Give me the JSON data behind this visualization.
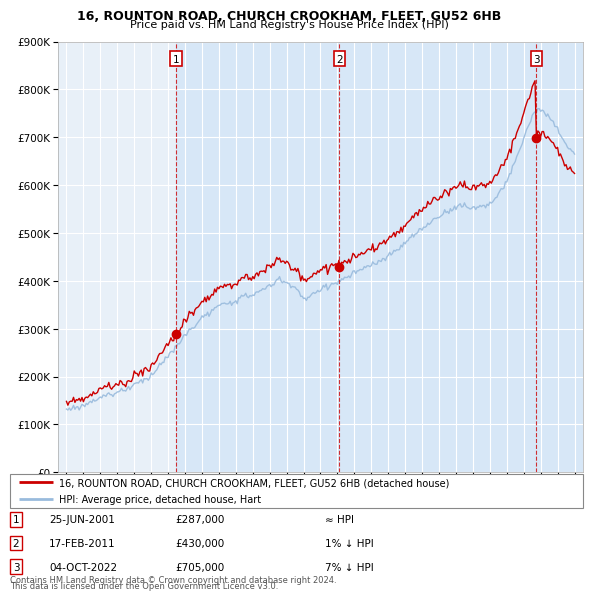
{
  "title1": "16, ROUNTON ROAD, CHURCH CROOKHAM, FLEET, GU52 6HB",
  "title2": "Price paid vs. HM Land Registry's House Price Index (HPI)",
  "legend_line1": "16, ROUNTON ROAD, CHURCH CROOKHAM, FLEET, GU52 6HB (detached house)",
  "legend_line2": "HPI: Average price, detached house, Hart",
  "transactions": [
    {
      "num": 1,
      "date": "25-JUN-2001",
      "price": 287000,
      "rel": "≈ HPI",
      "x": 2001.48
    },
    {
      "num": 2,
      "date": "17-FEB-2011",
      "price": 430000,
      "rel": "1% ↓ HPI",
      "x": 2011.12
    },
    {
      "num": 3,
      "date": "04-OCT-2022",
      "price": 705000,
      "rel": "7% ↓ HPI",
      "x": 2022.75
    }
  ],
  "footnote1": "Contains HM Land Registry data © Crown copyright and database right 2024.",
  "footnote2": "This data is licensed under the Open Government Licence v3.0.",
  "price_line_color": "#cc0000",
  "hpi_line_color": "#99bbdd",
  "vline_color": "#cc0000",
  "shade_color": "#d0e4f7",
  "plot_bg_color": "#e8f0f8",
  "grid_color": "#ffffff",
  "ylim": [
    0,
    900000
  ],
  "xlim_start": 1994.5,
  "xlim_end": 2025.5
}
